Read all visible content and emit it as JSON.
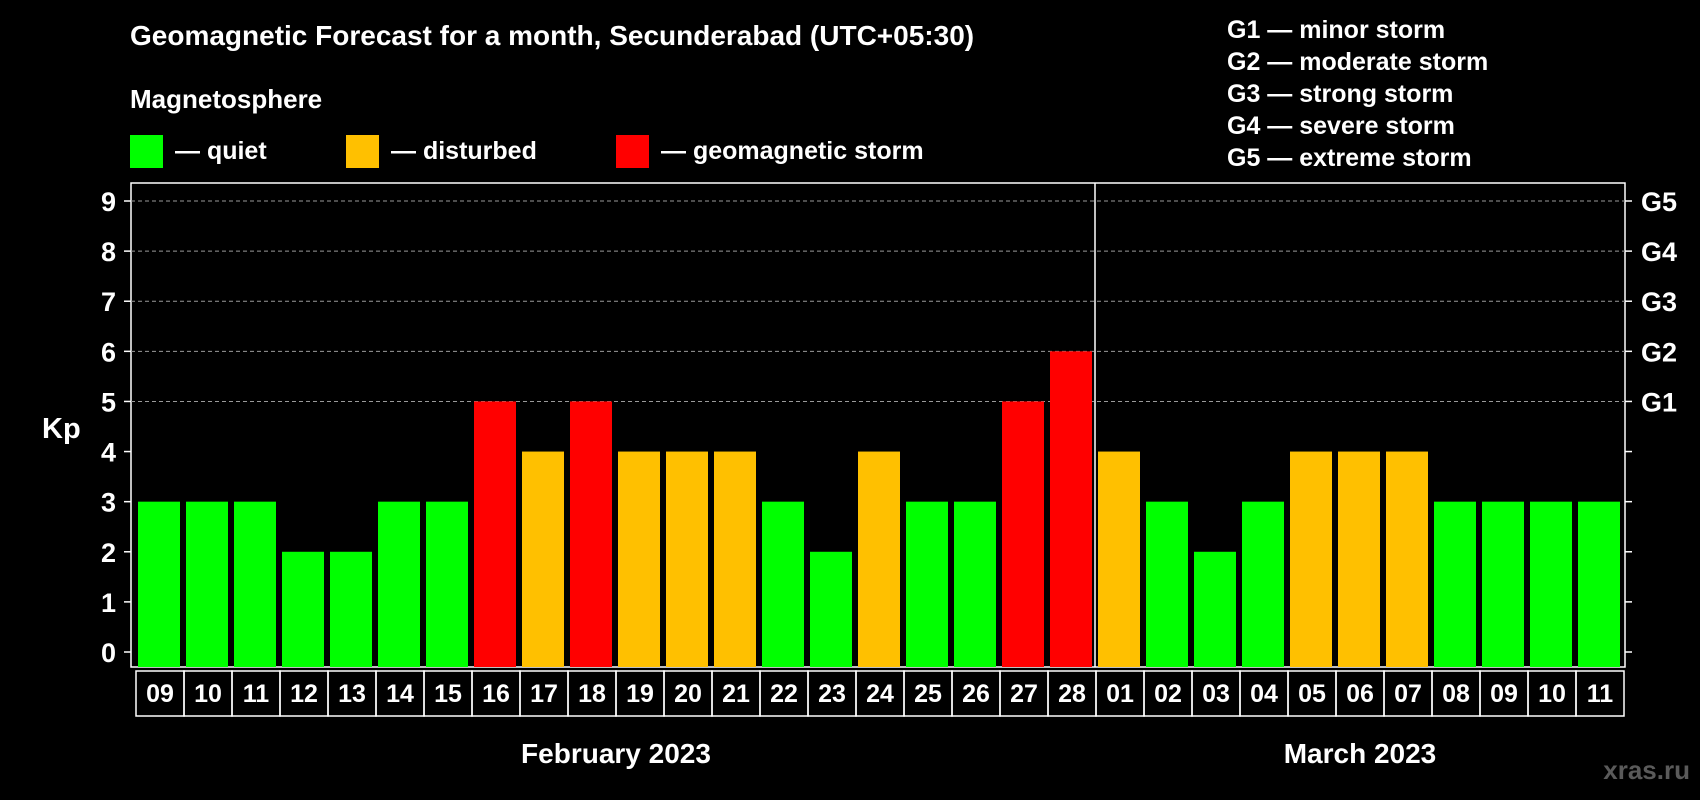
{
  "title": "Geomagnetic Forecast for a month, Secunderabad (UTC+05:30)",
  "subtitle": "Magnetosphere",
  "legend": [
    {
      "color": "#00ff00",
      "label": "— quiet"
    },
    {
      "color": "#ffc000",
      "label": "— disturbed"
    },
    {
      "color": "#ff0000",
      "label": "— geomagnetic storm"
    }
  ],
  "storm_levels": [
    "G1 — minor storm",
    "G2 — moderate storm",
    "G3 — strong storm",
    "G4 — severe storm",
    "G5 — extreme storm"
  ],
  "watermark": "xras.ru",
  "chart_data": {
    "type": "bar",
    "ylabel": "Kp",
    "ylim": [
      0,
      9
    ],
    "yticks": [
      "0",
      "1",
      "2",
      "3",
      "4",
      "5",
      "6",
      "7",
      "8",
      "9"
    ],
    "right_axis_labels": [
      {
        "kp": 5,
        "label": "G1"
      },
      {
        "kp": 6,
        "label": "G2"
      },
      {
        "kp": 7,
        "label": "G3"
      },
      {
        "kp": 8,
        "label": "G4"
      },
      {
        "kp": 9,
        "label": "G5"
      }
    ],
    "grid": "dashed horizontal at G-level values",
    "categories": [
      "09",
      "10",
      "11",
      "12",
      "13",
      "14",
      "15",
      "16",
      "17",
      "18",
      "19",
      "20",
      "21",
      "22",
      "23",
      "24",
      "25",
      "26",
      "27",
      "28",
      "01",
      "02",
      "03",
      "04",
      "05",
      "06",
      "07",
      "08",
      "09",
      "10",
      "11"
    ],
    "values": [
      3,
      3,
      3,
      2,
      2,
      3,
      3,
      5,
      4,
      5,
      4,
      4,
      4,
      3,
      2,
      4,
      3,
      3,
      5,
      6,
      4,
      3,
      2,
      3,
      4,
      4,
      4,
      3,
      3,
      3,
      3
    ],
    "status": [
      "quiet",
      "quiet",
      "quiet",
      "quiet",
      "quiet",
      "quiet",
      "quiet",
      "storm",
      "disturbed",
      "storm",
      "disturbed",
      "disturbed",
      "disturbed",
      "quiet",
      "quiet",
      "disturbed",
      "quiet",
      "quiet",
      "storm",
      "storm",
      "disturbed",
      "quiet",
      "quiet",
      "quiet",
      "disturbed",
      "disturbed",
      "disturbed",
      "quiet",
      "quiet",
      "quiet",
      "quiet"
    ],
    "status_colors": {
      "quiet": "#00ff00",
      "disturbed": "#ffc000",
      "storm": "#ff0000"
    },
    "months": [
      {
        "label": "February 2023",
        "start": 0,
        "count": 20
      },
      {
        "label": "March 2023",
        "start": 20,
        "count": 11
      }
    ]
  }
}
